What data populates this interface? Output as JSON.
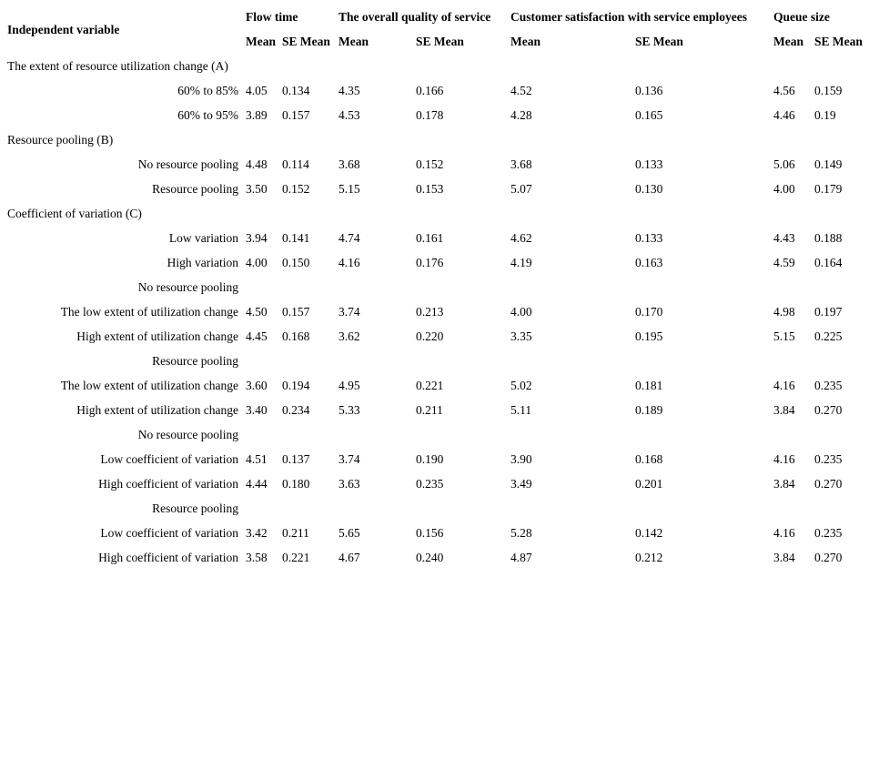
{
  "table": {
    "header": {
      "independent_variable": "Independent variable",
      "groups": [
        {
          "label": "Flow time",
          "mean": "Mean",
          "se_mean": "SE Mean"
        },
        {
          "label": "The overall quality of service",
          "mean": "Mean",
          "se_mean": "SE Mean"
        },
        {
          "label": "Customer satisfaction with service employees",
          "mean": "Mean",
          "se_mean": "SE Mean"
        },
        {
          "label": "Queue size",
          "mean": "Mean",
          "se_mean": "SE Mean"
        }
      ]
    },
    "rows": [
      {
        "type": "group",
        "label": "The extent of resource utilization change (A)"
      },
      {
        "type": "data",
        "label": "60% to 85%",
        "values": [
          "4.05",
          "0.134",
          "4.35",
          "0.166",
          "4.52",
          "0.136",
          "4.56",
          "0.159"
        ]
      },
      {
        "type": "data",
        "label": "60% to 95%",
        "values": [
          "3.89",
          "0.157",
          "4.53",
          "0.178",
          "4.28",
          "0.165",
          "4.46",
          "0.19"
        ]
      },
      {
        "type": "group",
        "label": "Resource pooling (B)"
      },
      {
        "type": "data",
        "label": "No resource pooling",
        "values": [
          "4.48",
          "0.114",
          "3.68",
          "0.152",
          "3.68",
          "0.133",
          "5.06",
          "0.149"
        ]
      },
      {
        "type": "data",
        "label": "Resource pooling",
        "values": [
          "3.50",
          "0.152",
          "5.15",
          "0.153",
          "5.07",
          "0.130",
          "4.00",
          "0.179"
        ]
      },
      {
        "type": "group",
        "label": "Coefficient of variation (C)"
      },
      {
        "type": "data",
        "label": "Low variation",
        "values": [
          "3.94",
          "0.141",
          "4.74",
          "0.161",
          "4.62",
          "0.133",
          "4.43",
          "0.188"
        ]
      },
      {
        "type": "data",
        "label": "High variation",
        "values": [
          "4.00",
          "0.150",
          "4.16",
          "0.176",
          "4.19",
          "0.163",
          "4.59",
          "0.164"
        ]
      },
      {
        "type": "subgroup",
        "label": "No resource pooling"
      },
      {
        "type": "data",
        "label": "The low extent of utilization change",
        "values": [
          "4.50",
          "0.157",
          "3.74",
          "0.213",
          "4.00",
          "0.170",
          "4.98",
          "0.197"
        ]
      },
      {
        "type": "data",
        "label": "High extent of utilization change",
        "values": [
          "4.45",
          "0.168",
          "3.62",
          "0.220",
          "3.35",
          "0.195",
          "5.15",
          "0.225"
        ]
      },
      {
        "type": "subgroup",
        "label": "Resource pooling"
      },
      {
        "type": "data",
        "label": "The low extent of utilization change",
        "values": [
          "3.60",
          "0.194",
          "4.95",
          "0.221",
          "5.02",
          "0.181",
          "4.16",
          "0.235"
        ]
      },
      {
        "type": "data",
        "label": "High extent of utilization change",
        "values": [
          "3.40",
          "0.234",
          "5.33",
          "0.211",
          "5.11",
          "0.189",
          "3.84",
          "0.270"
        ]
      },
      {
        "type": "subgroup",
        "label": "No resource pooling"
      },
      {
        "type": "data",
        "label": "Low coefficient of variation",
        "values": [
          "4.51",
          "0.137",
          "3.74",
          "0.190",
          "3.90",
          "0.168",
          "4.16",
          "0.235"
        ]
      },
      {
        "type": "data",
        "label": "High coefficient of variation",
        "values": [
          "4.44",
          "0.180",
          "3.63",
          "0.235",
          "3.49",
          "0.201",
          "3.84",
          "0.270"
        ]
      },
      {
        "type": "subgroup",
        "label": "Resource pooling"
      },
      {
        "type": "data",
        "label": "Low coefficient of variation",
        "values": [
          "3.42",
          "0.211",
          "5.65",
          "0.156",
          "5.28",
          "0.142",
          "4.16",
          "0.235"
        ]
      },
      {
        "type": "data",
        "label": "High coefficient of variation",
        "values": [
          "3.58",
          "0.221",
          "4.67",
          "0.240",
          "4.87",
          "0.212",
          "3.84",
          "0.270"
        ]
      }
    ]
  }
}
